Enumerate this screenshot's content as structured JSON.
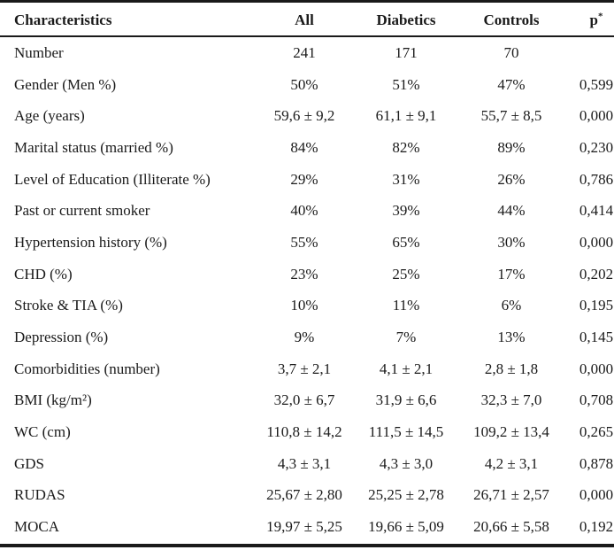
{
  "table": {
    "headers": {
      "characteristics": "Characteristics",
      "all": "All",
      "diabetics": "Diabetics",
      "controls": "Controls",
      "p": "p*"
    },
    "rows": [
      {
        "characteristic": "Number",
        "all": "241",
        "diabetics": "171",
        "controls": "70",
        "p": ""
      },
      {
        "characteristic": "Gender (Men %)",
        "all": "50%",
        "diabetics": "51%",
        "controls": "47%",
        "p": "0,599"
      },
      {
        "characteristic": "Age (years)",
        "all": "59,6 ± 9,2",
        "diabetics": "61,1 ± 9,1",
        "controls": "55,7 ± 8,5",
        "p": "0,000"
      },
      {
        "characteristic": "Marital status (married %)",
        "all": "84%",
        "diabetics": "82%",
        "controls": "89%",
        "p": "0,230"
      },
      {
        "characteristic": "Level of Education (Illiterate %)",
        "all": "29%",
        "diabetics": "31%",
        "controls": "26%",
        "p": "0,786"
      },
      {
        "characteristic": "Past or current smoker",
        "all": "40%",
        "diabetics": "39%",
        "controls": "44%",
        "p": "0,414"
      },
      {
        "characteristic": "Hypertension history (%)",
        "all": "55%",
        "diabetics": "65%",
        "controls": "30%",
        "p": "0,000"
      },
      {
        "characteristic": "CHD (%)",
        "all": "23%",
        "diabetics": "25%",
        "controls": "17%",
        "p": "0,202"
      },
      {
        "characteristic": "Stroke & TIA (%)",
        "all": "10%",
        "diabetics": "11%",
        "controls": "6%",
        "p": "0,195"
      },
      {
        "characteristic": "Depression (%)",
        "all": "9%",
        "diabetics": "7%",
        "controls": "13%",
        "p": "0,145"
      },
      {
        "characteristic": "Comorbidities (number)",
        "all": "3,7 ± 2,1",
        "diabetics": "4,1 ± 2,1",
        "controls": "2,8 ± 1,8",
        "p": "0,000"
      },
      {
        "characteristic": "BMI (kg/m²)",
        "all": "32,0 ± 6,7",
        "diabetics": "31,9 ± 6,6",
        "controls": "32,3 ± 7,0",
        "p": "0,708"
      },
      {
        "characteristic": "WC (cm)",
        "all": "110,8 ± 14,2",
        "diabetics": "111,5 ± 14,5",
        "controls": "109,2 ± 13,4",
        "p": "0,265"
      },
      {
        "characteristic": "GDS",
        "all": "4,3 ± 3,1",
        "diabetics": "4,3 ± 3,0",
        "controls": "4,2 ± 3,1",
        "p": "0,878"
      },
      {
        "characteristic": "RUDAS",
        "all": "25,67 ± 2,80",
        "diabetics": "25,25 ± 2,78",
        "controls": "26,71 ± 2,57",
        "p": "0,000"
      },
      {
        "characteristic": "MOCA",
        "all": "19,97 ± 5,25",
        "diabetics": "19,66 ± 5,09",
        "controls": "20,66 ± 5,58",
        "p": "0,192"
      }
    ]
  }
}
